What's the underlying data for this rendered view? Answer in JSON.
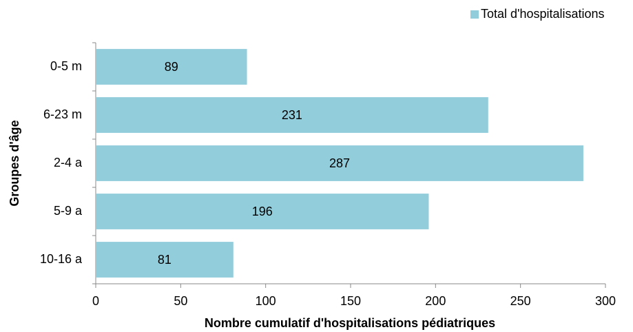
{
  "chart_data": {
    "type": "bar",
    "orientation": "horizontal",
    "categories": [
      "0-5 m",
      "6-23 m",
      "2-4 a",
      "5-9 a",
      "10-16 a"
    ],
    "series": [
      {
        "name": "Total d'hospitalisations",
        "color": "#92cddc",
        "values": [
          89,
          231,
          287,
          196,
          81
        ]
      }
    ],
    "x_label": "Nombre cumulatif d'hospitalisations pédiatriques",
    "y_label": "Groupes d'âge",
    "xlim": [
      0,
      300
    ],
    "xticks": [
      0,
      50,
      100,
      150,
      200,
      250,
      300
    ],
    "legend": "top-right",
    "data_labels": true
  }
}
